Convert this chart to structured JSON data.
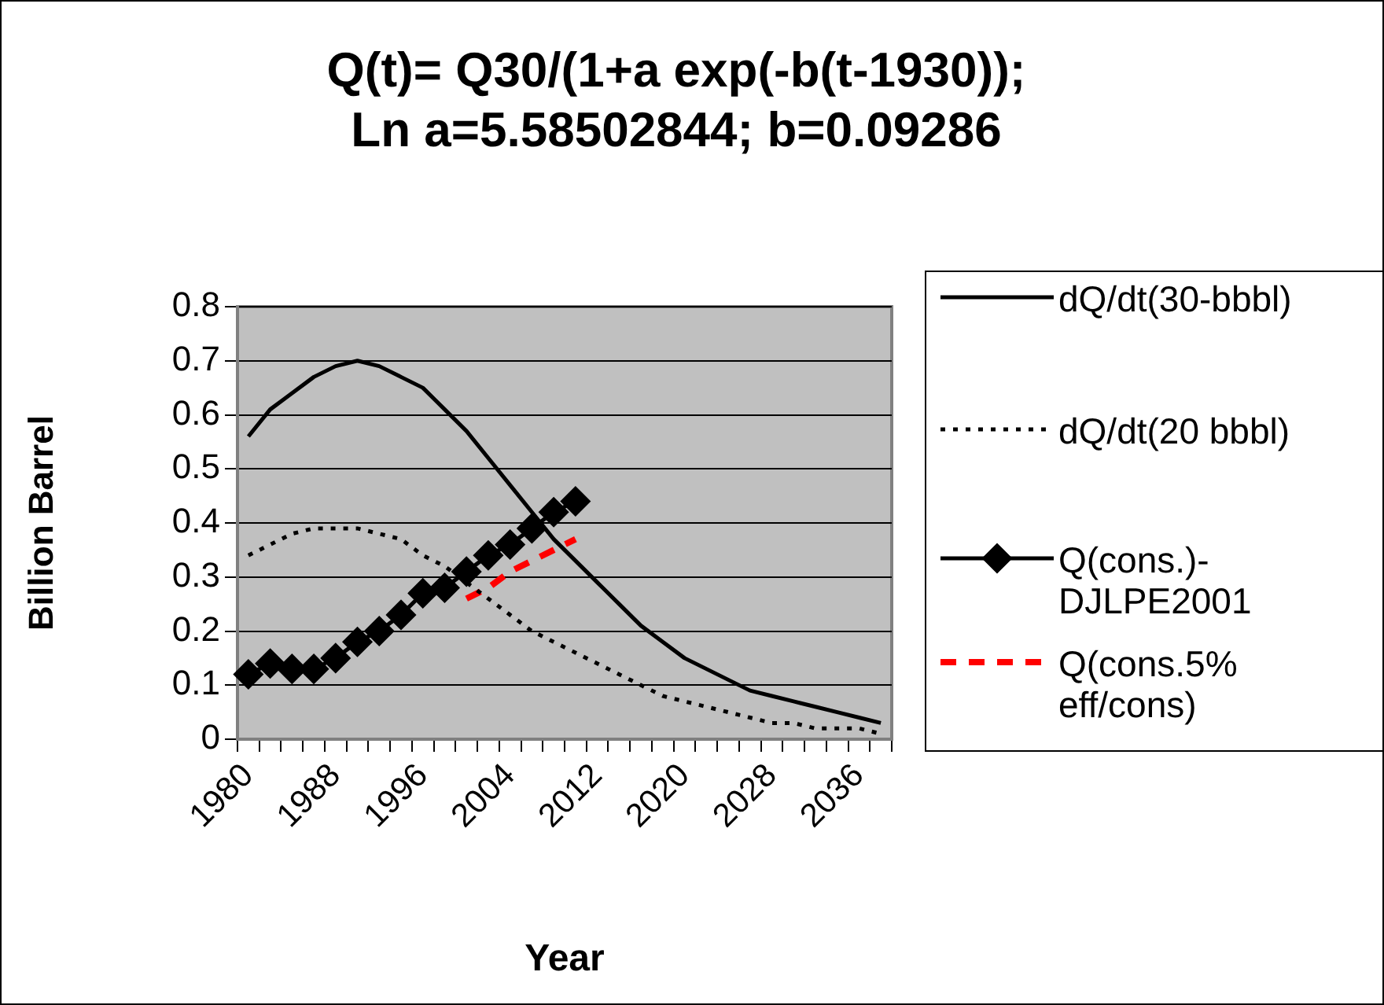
{
  "chart_data": {
    "type": "line",
    "title": "Q(t)= Q30/(1+a exp(-b(t-1930)); Ln a=5.58502844; b=0.09286",
    "xlabel": "Year",
    "ylabel": "Billion Barrel",
    "categories": [
      "1980",
      null,
      null,
      null,
      "1988",
      null,
      null,
      null,
      "1996",
      null,
      null,
      null,
      "2004",
      null,
      null,
      null,
      "2012",
      null,
      null,
      null,
      "2020",
      null,
      null,
      null,
      "2028",
      null,
      null,
      null,
      "2036",
      null
    ],
    "series": [
      {
        "name": "dQ/dt(30-bbbl)",
        "color": "#000000",
        "line_style": "solid",
        "marker": "none",
        "values": [
          0.56,
          0.61,
          0.64,
          0.67,
          0.69,
          0.7,
          0.69,
          0.67,
          0.65,
          0.61,
          0.57,
          0.52,
          0.47,
          0.42,
          0.37,
          0.33,
          0.29,
          0.25,
          0.21,
          0.18,
          0.15,
          0.13,
          0.11,
          0.09,
          0.08,
          0.07,
          0.06,
          0.05,
          0.04,
          0.03
        ]
      },
      {
        "name": "dQ/dt(20 bbbl)",
        "color": "#000000",
        "line_style": "dotted",
        "marker": "none",
        "values": [
          0.34,
          0.36,
          0.38,
          0.39,
          0.39,
          0.39,
          0.38,
          0.37,
          0.34,
          0.32,
          0.29,
          0.26,
          0.23,
          0.2,
          0.18,
          0.16,
          0.14,
          0.12,
          0.1,
          0.08,
          0.07,
          0.06,
          0.05,
          0.04,
          0.03,
          0.03,
          0.02,
          0.02,
          0.02,
          0.01
        ]
      },
      {
        "name": "Q(cons.)-DJLPE2001",
        "color": "#000000",
        "line_style": "solid",
        "marker": "diamond",
        "values": [
          0.12,
          0.14,
          0.13,
          0.13,
          0.15,
          0.18,
          0.2,
          0.23,
          0.27,
          0.28,
          0.31,
          0.34,
          0.36,
          0.39,
          0.42,
          0.44,
          null,
          null,
          null,
          null,
          null,
          null,
          null,
          null,
          null,
          null,
          null,
          null,
          null,
          null
        ]
      },
      {
        "name": "Q(cons.5% eff/cons)",
        "color": "#ff0000",
        "line_style": "dashed",
        "marker": "none",
        "values": [
          null,
          null,
          null,
          null,
          null,
          null,
          null,
          null,
          null,
          null,
          0.26,
          0.28,
          0.31,
          0.33,
          0.35,
          0.37,
          null,
          null,
          null,
          null,
          null,
          null,
          null,
          null,
          null,
          null,
          null,
          null,
          null,
          null
        ]
      }
    ],
    "ylim": [
      0,
      0.8
    ],
    "yticks": [
      0,
      0.1,
      0.2,
      0.3,
      0.4,
      0.5,
      0.6,
      0.7,
      0.8
    ],
    "grid": "y",
    "legend": "right"
  }
}
